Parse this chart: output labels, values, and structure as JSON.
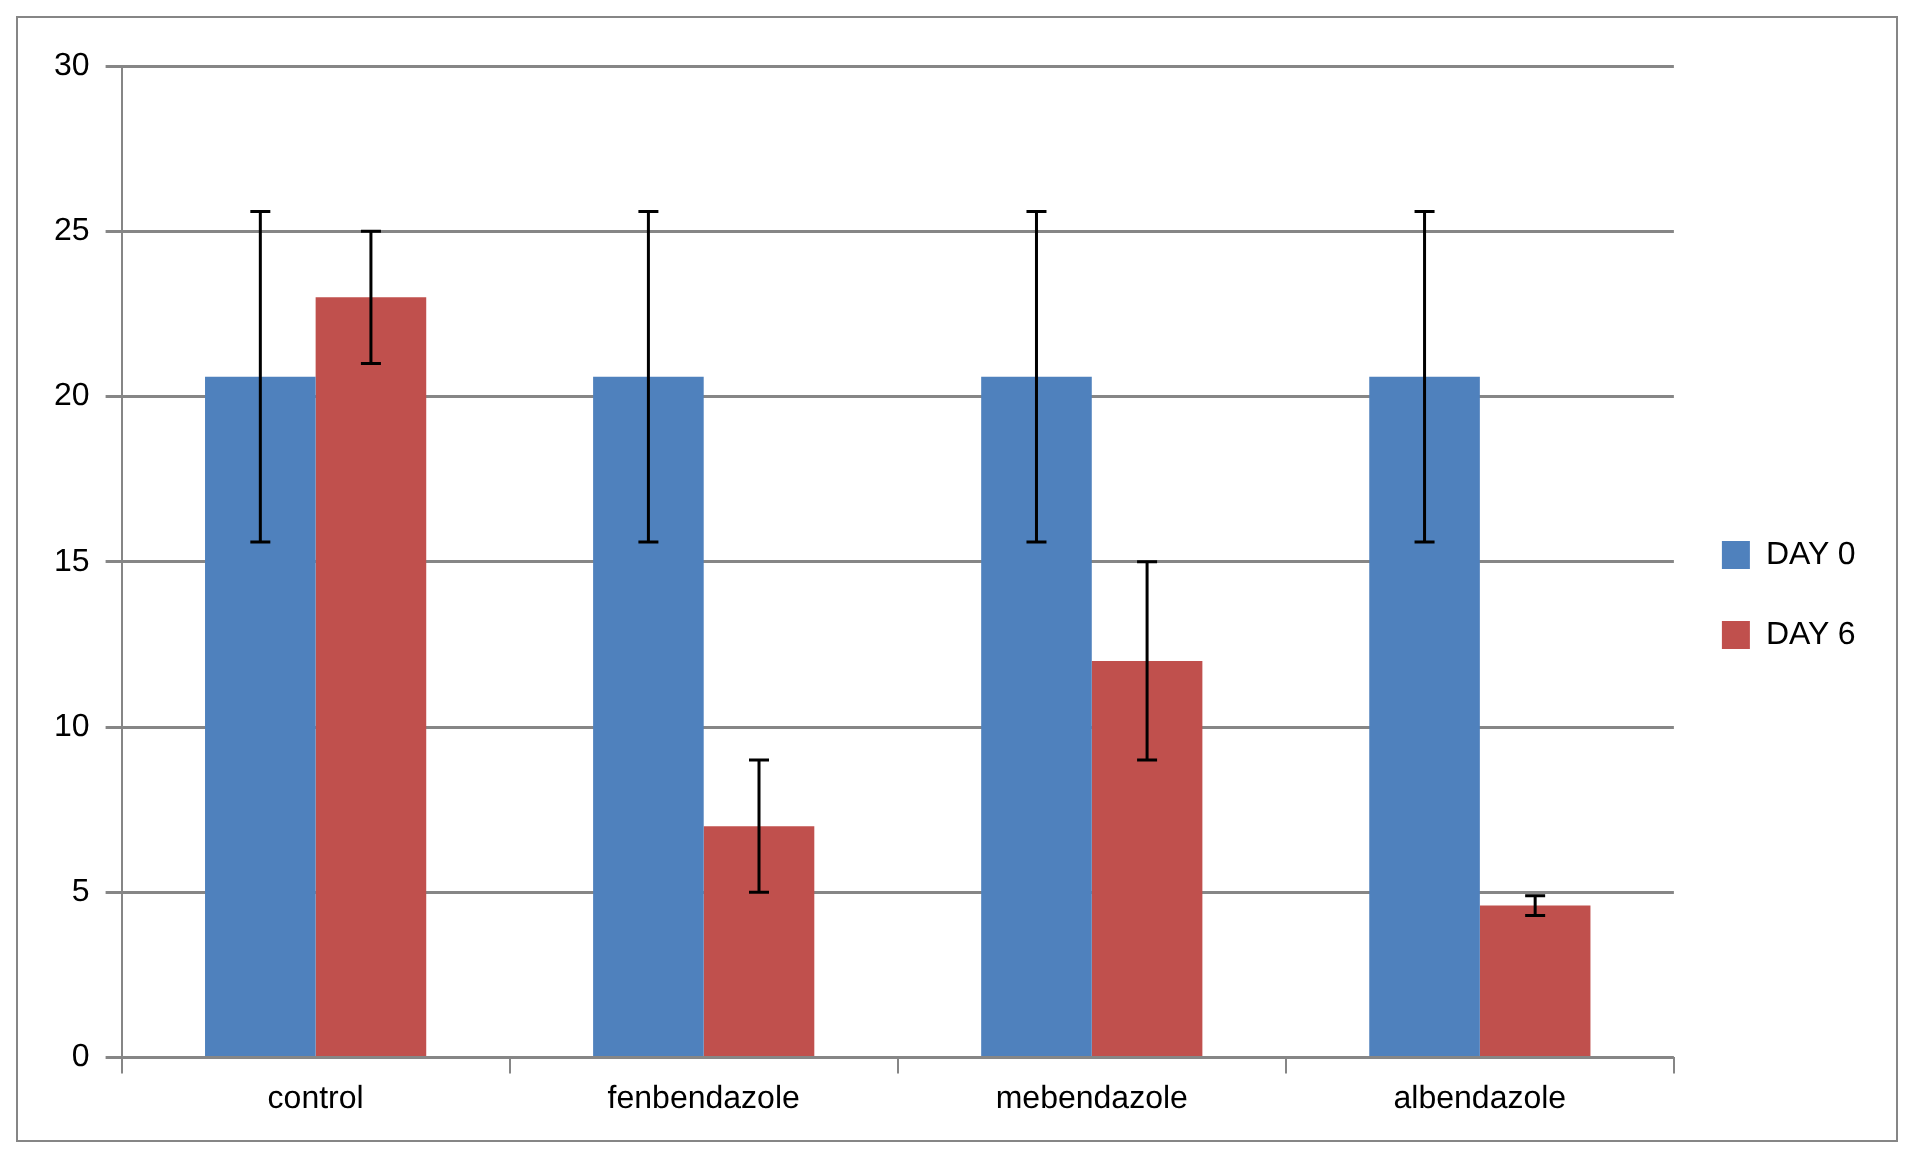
{
  "chart_data": {
    "type": "bar",
    "categories": [
      "control",
      "fenbendazole",
      "mebendazole",
      "albendazole"
    ],
    "series": [
      {
        "name": "DAY 0",
        "color": "#4f81bd",
        "values": [
          20.6,
          20.6,
          20.6,
          20.6
        ],
        "errors": [
          5,
          5,
          5,
          5
        ]
      },
      {
        "name": "DAY 6",
        "color": "#c0504d",
        "values": [
          23,
          7,
          12,
          4.6
        ],
        "errors": [
          2,
          2,
          3,
          0.3
        ]
      }
    ],
    "ylim": [
      0,
      30
    ],
    "yticks": [
      0,
      5,
      10,
      15,
      20,
      25,
      30
    ],
    "grid": "y",
    "legend": "right"
  }
}
